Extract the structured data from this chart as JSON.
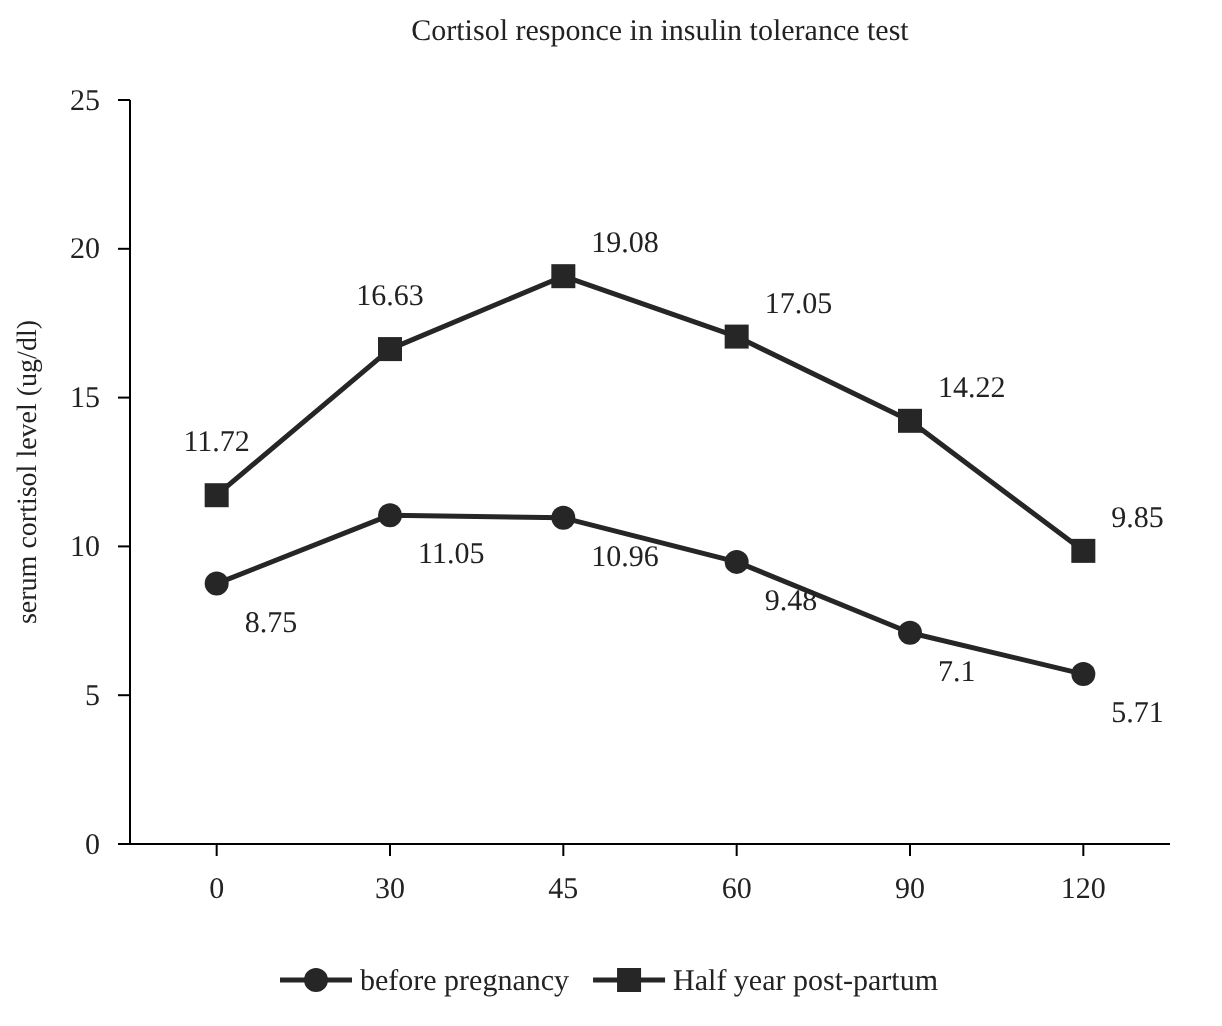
{
  "chart_data": {
    "type": "line",
    "title": "Cortisol responce in insulin tolerance test",
    "ylabel": "serum cortisol level (ug/dl)",
    "categories": [
      "0",
      "30",
      "45",
      "60",
      "90",
      "120"
    ],
    "series": [
      {
        "name": "before pregnancy",
        "color": "#262626",
        "marker": "circle",
        "values": [
          8.75,
          11.05,
          10.96,
          9.48,
          7.1,
          5.71
        ]
      },
      {
        "name": "Half year post-partum",
        "color": "#262626",
        "marker": "square",
        "values": [
          11.72,
          16.63,
          19.08,
          17.05,
          14.22,
          9.85
        ]
      }
    ],
    "ylim": [
      0,
      25
    ],
    "yticks": [
      0,
      5,
      10,
      15,
      20,
      25
    ],
    "grid": false,
    "legend": "bottom",
    "data_labels": true,
    "line_style": "solid"
  }
}
